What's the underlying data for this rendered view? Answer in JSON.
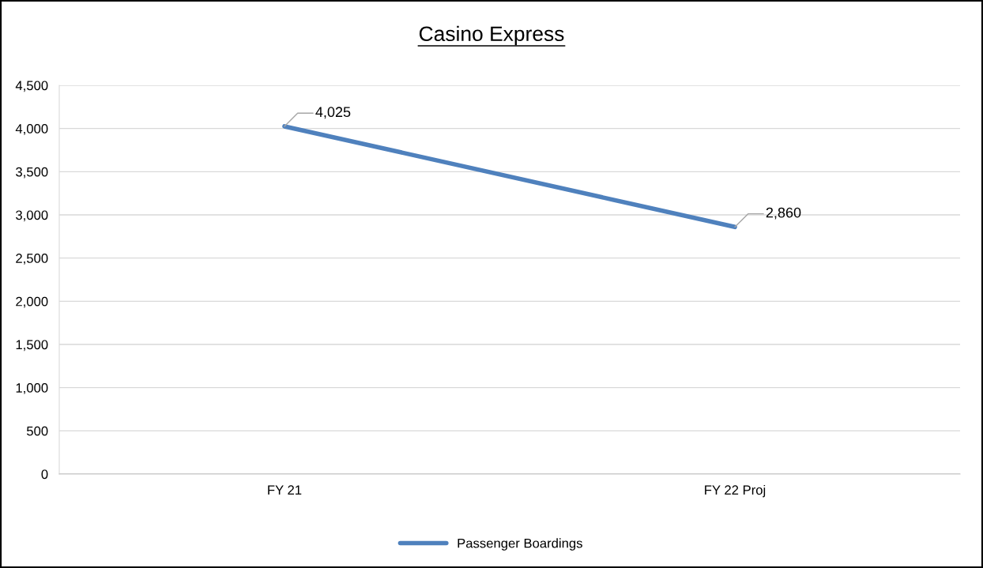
{
  "chart_data": {
    "type": "line",
    "title": "Casino Express",
    "categories": [
      "FY 21",
      "FY 22 Proj"
    ],
    "series": [
      {
        "name": "Passenger Boardings",
        "color": "#4f81bd",
        "values": [
          4025,
          2860
        ],
        "value_labels": [
          "4,025",
          "2,860"
        ]
      }
    ],
    "ylim": [
      0,
      4500
    ],
    "yticks": [
      {
        "value": 0,
        "label": "0"
      },
      {
        "value": 500,
        "label": "500"
      },
      {
        "value": 1000,
        "label": "1,000"
      },
      {
        "value": 1500,
        "label": "1,500"
      },
      {
        "value": 2000,
        "label": "2,000"
      },
      {
        "value": 2500,
        "label": "2,500"
      },
      {
        "value": 3000,
        "label": "3,000"
      },
      {
        "value": 3500,
        "label": "3,500"
      },
      {
        "value": 4000,
        "label": "4,000"
      },
      {
        "value": 4500,
        "label": "4,500"
      }
    ],
    "grid": "y",
    "legend": "bottom",
    "marker": "none",
    "line_style": "solid"
  }
}
